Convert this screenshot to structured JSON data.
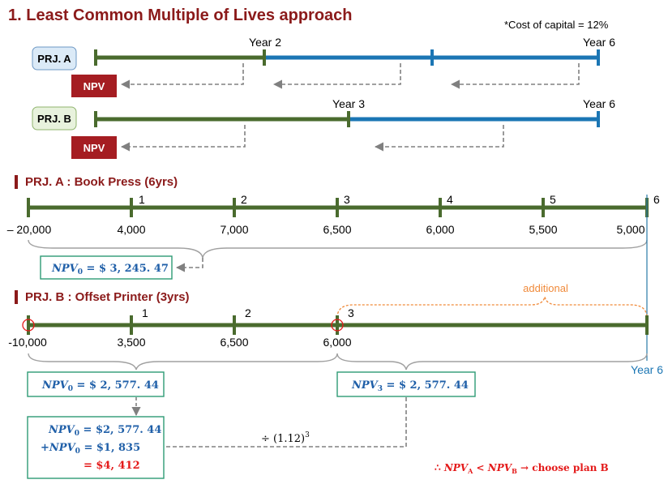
{
  "title": "1. Least Common Multiple of Lives approach",
  "cost_note": "*Cost of capital = 12%",
  "overview": {
    "prj_a": {
      "label": "PRJ. A",
      "year_labels": [
        "Year 2",
        "Year 6"
      ],
      "npv_label": "NPV"
    },
    "prj_b": {
      "label": "PRJ. B",
      "year_labels": [
        "Year 3",
        "Year 6"
      ],
      "npv_label": "NPV"
    }
  },
  "project_a": {
    "header": "PRJ. A : Book Press (6yrs)",
    "periods": [
      "1",
      "2",
      "3",
      "4",
      "5",
      "6"
    ],
    "cash_flows": [
      "– 20,000",
      "4,000",
      "7,000",
      "6,500",
      "6,000",
      "5,500",
      "5,000"
    ],
    "npv": {
      "symbol": "NPV",
      "sub": "0",
      "value": " = $ 3, 245. 47"
    }
  },
  "project_b": {
    "header": "PRJ. B : Offset Printer (3yrs)",
    "periods": [
      "1",
      "2",
      "3"
    ],
    "cash_flows": [
      "-10,000",
      "3,500",
      "6,500",
      "6,000"
    ],
    "additional_label": "additional",
    "year6_label": "Year 6",
    "npv0": {
      "symbol": "NPV",
      "sub": "0",
      "value": " = $ 2, 577. 44"
    },
    "npv3": {
      "symbol": "NPV",
      "sub": "3",
      "value": " = $ 2, 577. 44"
    },
    "discount_label": "÷ (1.12)",
    "discount_exp": "3",
    "sum": {
      "line1": {
        "symbol": "NPV",
        "sub": "0",
        "value": " = $2, 577. 44"
      },
      "line2": {
        "prefix": "+",
        "symbol": "NPV",
        "sub": "0",
        "value": " = $1, 835"
      },
      "total": "= $4, 412"
    }
  },
  "conclusion": {
    "therefore": "∴ ",
    "lhs": "NPV",
    "lhs_sub": "A",
    "op": " < ",
    "rhs": "NPV",
    "rhs_sub": "B",
    "arrow": " → ",
    "text": "choose plan B"
  },
  "colors": {
    "green": "#4a6b2e",
    "blue": "#1b76b4",
    "maroon": "#8b1a1a",
    "npv_box": "#a51d22",
    "prj_a_bg": "#dbeaf7",
    "prj_b_bg": "#e8f2dd",
    "teal_border": "#2e9b74",
    "eq_blue": "#1f5fa8",
    "red": "#e41a1a",
    "orange": "#f08a3a"
  }
}
